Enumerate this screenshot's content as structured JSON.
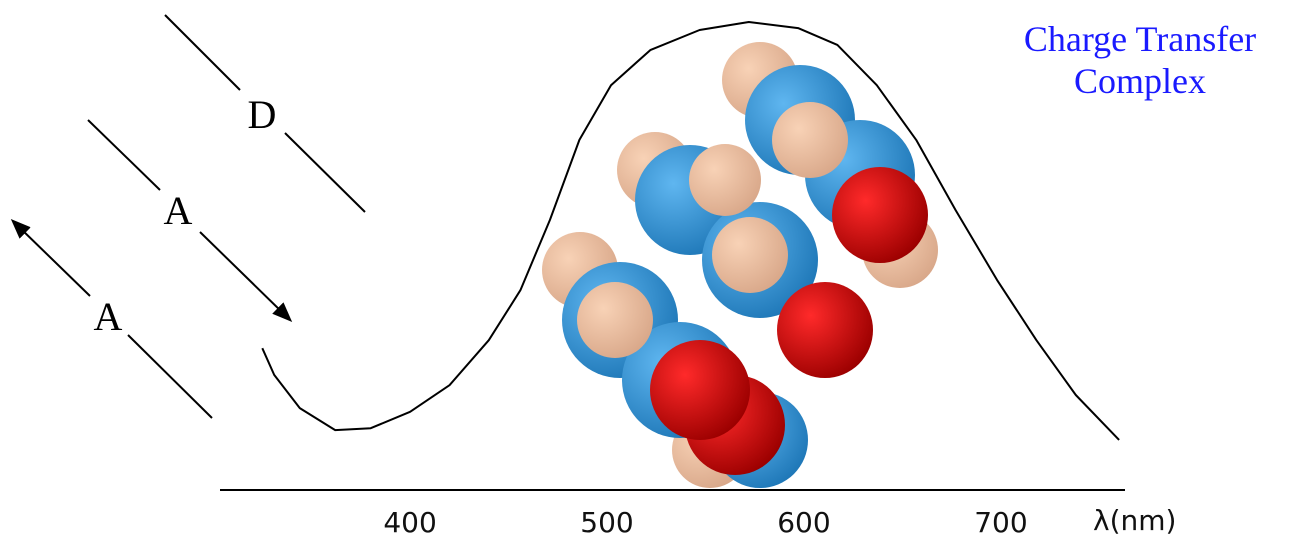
{
  "chart_data": {
    "type": "line",
    "title": "Charge Transfer Complex",
    "x_label": "λ(nm)",
    "annotations": [
      "D",
      "A",
      "A"
    ],
    "x": [
      325,
      331,
      344,
      362,
      380,
      400,
      420,
      440,
      456,
      471,
      486,
      502,
      522,
      547,
      572,
      597,
      617,
      637,
      657,
      677,
      698,
      718,
      738,
      760
    ],
    "series": [
      {
        "color": "#000000",
        "values": [
          0.303,
          0.246,
          0.175,
          0.128,
          0.132,
          0.167,
          0.224,
          0.32,
          0.427,
          0.577,
          0.748,
          0.865,
          0.94,
          0.983,
          1.0,
          0.987,
          0.951,
          0.865,
          0.748,
          0.598,
          0.449,
          0.32,
          0.203,
          0.107
        ]
      }
    ],
    "xlim": [
      303.5,
      763
    ],
    "xticks": [
      400,
      500,
      600,
      700
    ],
    "ylim": [
      0,
      1
    ],
    "grid": false
  }
}
